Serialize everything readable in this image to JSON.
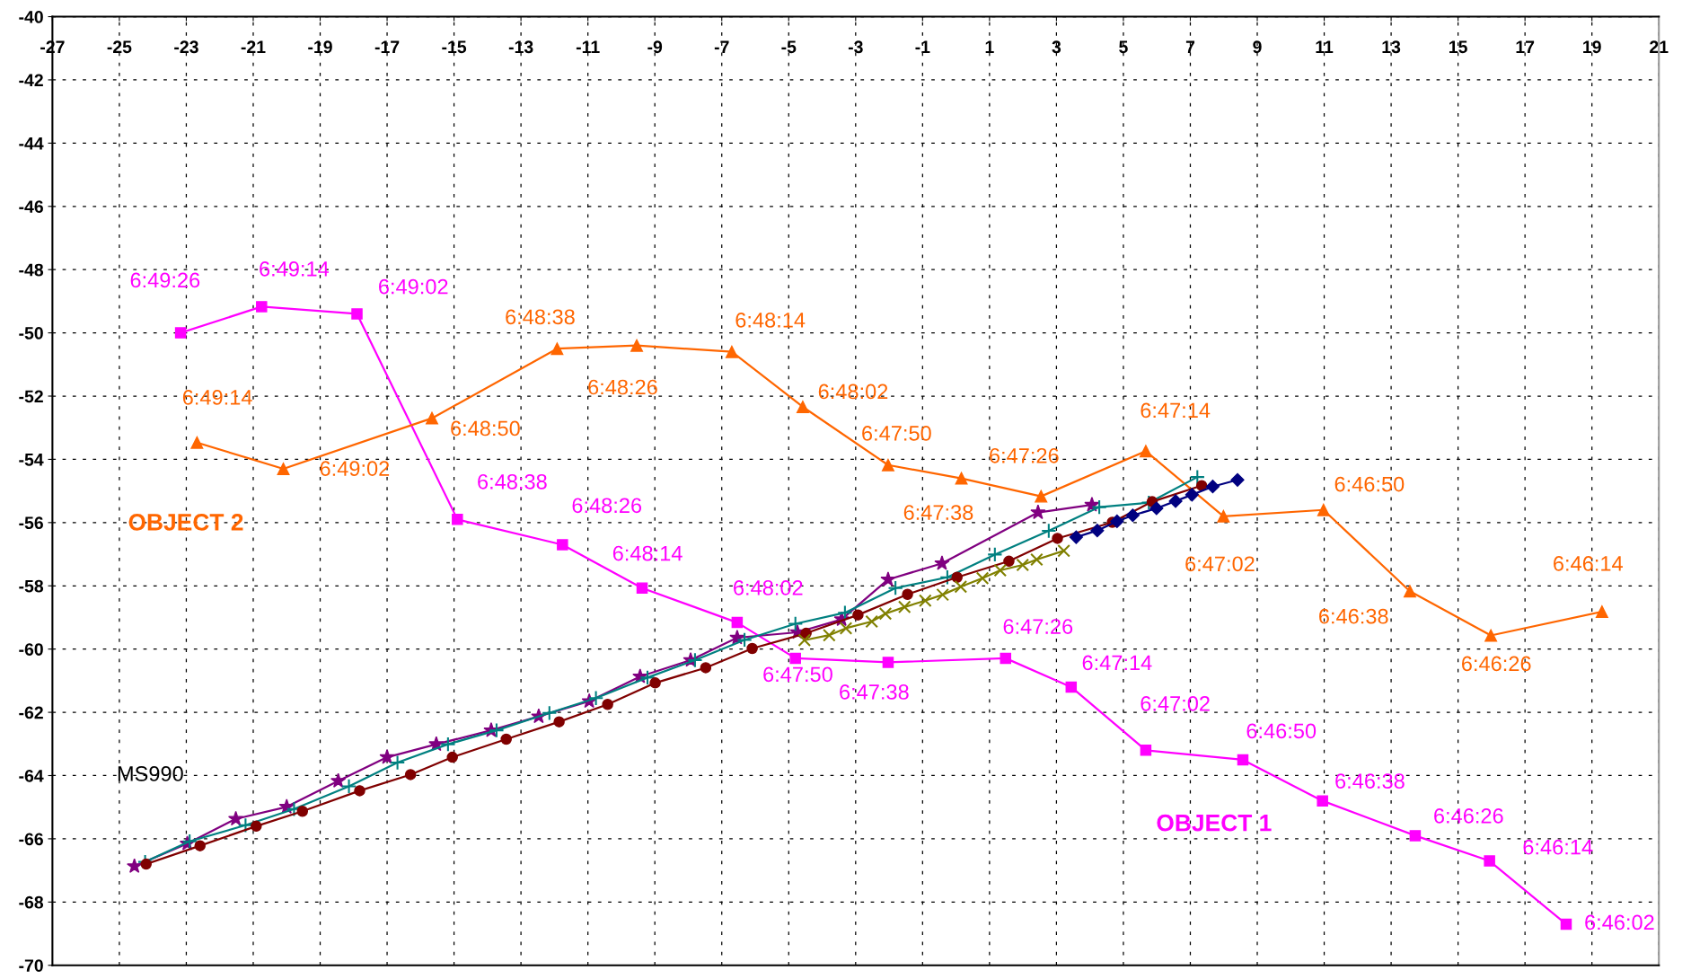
{
  "chart_data": {
    "type": "line",
    "xlim": [
      -27,
      21
    ],
    "xticks": [
      -27,
      -25,
      -23,
      -21,
      -19,
      -17,
      -15,
      -13,
      -11,
      -9,
      -7,
      -5,
      -3,
      -1,
      1,
      3,
      5,
      7,
      9,
      11,
      13,
      15,
      17,
      19,
      21
    ],
    "ylim": [
      -70,
      -40
    ],
    "yticks": [
      -40,
      -42,
      -44,
      -46,
      -48,
      -50,
      -52,
      -54,
      -56,
      -58,
      -60,
      -62,
      -64,
      -66,
      -68,
      -70
    ],
    "grid": true,
    "line_style": "solid",
    "series": [
      {
        "name": "OBJECT 1",
        "color": "#ff00ff",
        "marker": "square",
        "x": [
          -23.17,
          -20.75,
          -17.9,
          -14.9,
          -11.76,
          -9.38,
          -6.54,
          -4.8,
          -2.03,
          1.48,
          3.44,
          5.67,
          8.57,
          10.95,
          13.72,
          15.94,
          18.23
        ],
        "values": [
          -50.0,
          -49.17,
          -49.4,
          -55.9,
          -56.7,
          -58.07,
          -59.16,
          -60.29,
          -60.42,
          -60.29,
          -61.2,
          -63.2,
          -63.5,
          -64.8,
          -65.9,
          -66.7,
          -68.7
        ]
      },
      {
        "name": "OBJECT 2",
        "color": "#ff6600",
        "marker": "triangle",
        "x": [
          -22.68,
          -20.1,
          -15.66,
          -11.92,
          -9.54,
          -6.7,
          -4.58,
          -2.03,
          0.16,
          2.54,
          5.67,
          7.99,
          10.98,
          13.56,
          15.98,
          19.3
        ],
        "values": [
          -53.47,
          -54.3,
          -52.7,
          -50.5,
          -50.4,
          -50.6,
          -52.34,
          -54.18,
          -54.6,
          -55.17,
          -53.74,
          -55.8,
          -55.6,
          -58.17,
          -59.57,
          -58.82
        ]
      },
      {
        "color": "#800080",
        "marker": "star",
        "x": [
          -24.55,
          -22.97,
          -21.52,
          -20.0,
          -18.46,
          -17.0,
          -15.53,
          -13.89,
          -12.47,
          -10.96,
          -9.44,
          -7.93,
          -6.54,
          -4.74,
          -3.42,
          -2.03,
          -0.42,
          2.45,
          4.06
        ],
        "values": [
          -66.87,
          -66.15,
          -65.37,
          -64.99,
          -64.17,
          -63.42,
          -63.01,
          -62.57,
          -62.13,
          -61.65,
          -60.87,
          -60.35,
          -59.64,
          -59.47,
          -59.06,
          -57.8,
          -57.29,
          -55.68,
          -55.44
        ]
      },
      {
        "color": "#008080",
        "marker": "cross",
        "x": [
          -24.23,
          -22.9,
          -21.23,
          -19.78,
          -18.14,
          -16.69,
          -15.18,
          -13.73,
          -12.15,
          -10.76,
          -9.22,
          -7.8,
          -6.32,
          -4.8,
          -3.32,
          -1.81,
          -0.26,
          1.16,
          2.77,
          4.28,
          5.76,
          7.21
        ],
        "values": [
          -66.73,
          -66.08,
          -65.57,
          -65.06,
          -64.34,
          -63.59,
          -63.01,
          -62.57,
          -62.02,
          -61.55,
          -60.9,
          -60.35,
          -59.71,
          -59.2,
          -58.85,
          -58.07,
          -57.73,
          -57.01,
          -56.26,
          -55.51,
          -55.37,
          -54.56
        ]
      },
      {
        "color": "#800000",
        "marker": "circle",
        "x": [
          -24.2,
          -22.59,
          -20.91,
          -19.53,
          -17.82,
          -16.3,
          -15.05,
          -13.44,
          -11.86,
          -10.41,
          -8.99,
          -7.48,
          -6.09,
          -4.48,
          -2.93,
          -1.45,
          0.03,
          1.58,
          3.03,
          4.67,
          5.86,
          7.34
        ],
        "values": [
          -66.8,
          -66.22,
          -65.6,
          -65.13,
          -64.48,
          -63.97,
          -63.42,
          -62.85,
          -62.3,
          -61.75,
          -61.07,
          -60.59,
          -59.98,
          -59.5,
          -58.92,
          -58.27,
          -57.73,
          -57.22,
          -56.5,
          -55.99,
          -55.34,
          -54.83
        ]
      },
      {
        "color": "#808000",
        "marker": "x",
        "x": [
          -4.53,
          -3.79,
          -3.29,
          -2.52,
          -2.11,
          -1.54,
          -0.92,
          -0.4,
          0.14,
          0.79,
          1.32,
          1.99,
          2.41,
          3.22
        ],
        "values": [
          -59.72,
          -59.56,
          -59.34,
          -59.13,
          -58.88,
          -58.67,
          -58.47,
          -58.28,
          -58.03,
          -57.76,
          -57.51,
          -57.34,
          -57.17,
          -56.89
        ]
      },
      {
        "color": "#000080",
        "marker": "diamond",
        "x": [
          3.59,
          4.22,
          4.81,
          5.28,
          5.99,
          6.56,
          7.05,
          7.67,
          8.41
        ],
        "values": [
          -56.46,
          -56.25,
          -55.96,
          -55.77,
          -55.55,
          -55.32,
          -55.12,
          -54.86,
          -54.65
        ]
      }
    ],
    "annotations": [
      {
        "text": "6:49:26",
        "x": -23.17,
        "y": -50.0
      },
      {
        "text": "6:49:14",
        "x": -20.75,
        "y": -49.17
      },
      {
        "text": "6:49:02",
        "x": -17.9,
        "y": -49.4
      },
      {
        "text": "6:48:38",
        "x": -14.9,
        "y": -55.9
      },
      {
        "text": "6:48:26",
        "x": -11.76,
        "y": -56.7
      },
      {
        "text": "6:48:14",
        "x": -9.38,
        "y": -58.07
      },
      {
        "text": "6:48:02",
        "x": -6.54,
        "y": -59.16
      },
      {
        "text": "6:47:50",
        "x": -4.8,
        "y": -60.29
      },
      {
        "text": "6:47:38",
        "x": -2.03,
        "y": -60.42
      },
      {
        "text": "6:47:26",
        "x": 1.48,
        "y": -60.29
      },
      {
        "text": "6:47:14",
        "x": 3.44,
        "y": -61.2
      },
      {
        "text": "6:47:02",
        "x": 5.67,
        "y": -63.2
      },
      {
        "text": "6:46:50",
        "x": 8.57,
        "y": -63.5
      },
      {
        "text": "6:46:38",
        "x": 10.95,
        "y": -64.8
      },
      {
        "text": "6:46:26",
        "x": 13.72,
        "y": -65.9
      },
      {
        "text": "6:46:14",
        "x": 15.94,
        "y": -66.7
      },
      {
        "text": "6:46:02",
        "x": 18.23,
        "y": -68.7
      },
      {
        "text": "6:49:14",
        "x": -22.68,
        "y": -53.47
      },
      {
        "text": "6:49:02",
        "x": -20.1,
        "y": -54.3
      },
      {
        "text": "6:48:50",
        "x": -15.66,
        "y": -52.7
      },
      {
        "text": "6:48:38",
        "x": -11.92,
        "y": -50.5
      },
      {
        "text": "6:48:26",
        "x": -9.54,
        "y": -50.4
      },
      {
        "text": "6:48:14",
        "x": -6.7,
        "y": -50.6
      },
      {
        "text": "6:48:02",
        "x": -4.58,
        "y": -52.34
      },
      {
        "text": "6:47:50",
        "x": -2.03,
        "y": -54.18
      },
      {
        "text": "6:47:38",
        "x": 0.16,
        "y": -54.6
      },
      {
        "text": "6:47:26",
        "x": 2.54,
        "y": -55.17
      },
      {
        "text": "6:47:14",
        "x": 5.67,
        "y": -53.74
      },
      {
        "text": "6:47:02",
        "x": 7.99,
        "y": -55.8
      },
      {
        "text": "6:46:50",
        "x": 10.98,
        "y": -55.6
      },
      {
        "text": "6:46:38",
        "x": 13.56,
        "y": -58.17
      },
      {
        "text": "6:46:26",
        "x": 15.98,
        "y": -59.57
      },
      {
        "text": "6:46:14",
        "x": 19.3,
        "y": -58.82
      },
      "MS990"
    ]
  }
}
